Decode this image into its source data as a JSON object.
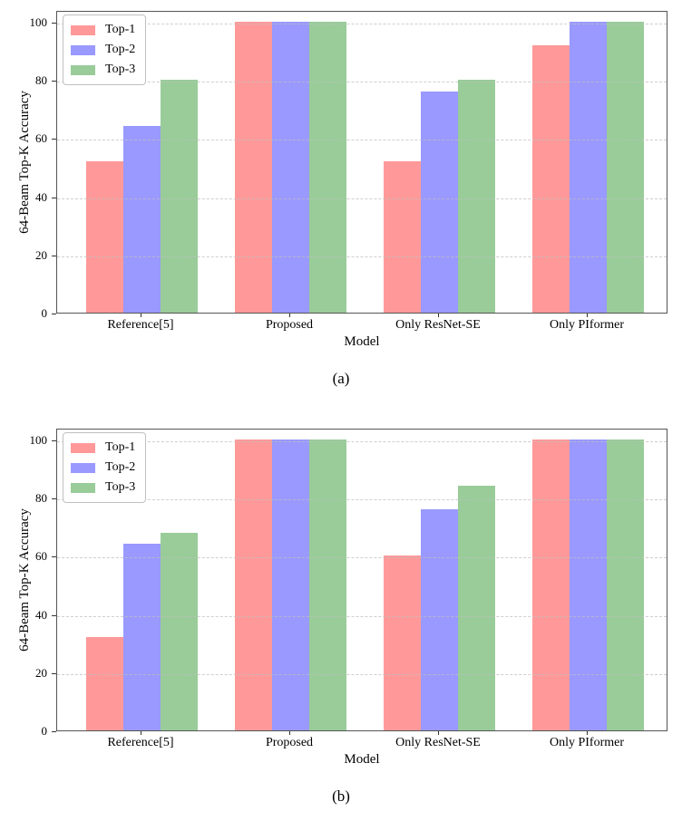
{
  "figure": {
    "background": "#ffffff",
    "spine_color": "#555555",
    "grid_color": "#bfbfbf",
    "text_color": "#000000"
  },
  "chart_data": [
    {
      "type": "bar",
      "caption": "(a)",
      "title": "",
      "xlabel": "Model",
      "ylabel": "64-Beam Top-K Accuracy",
      "categories": [
        "Reference[5]",
        "Proposed",
        "Only ResNet-SE",
        "Only PIformer"
      ],
      "series": [
        {
          "name": "Top-1",
          "color": "#ff9999",
          "values": [
            52,
            100,
            52,
            92
          ]
        },
        {
          "name": "Top-2",
          "color": "#9999ff",
          "values": [
            64,
            100,
            76,
            100
          ]
        },
        {
          "name": "Top-3",
          "color": "#99cc99",
          "values": [
            80,
            100,
            80,
            100
          ]
        }
      ],
      "yticks": [
        0,
        20,
        40,
        60,
        80,
        100
      ],
      "ylim": [
        0,
        104
      ],
      "grid": "horizontal-dashed",
      "legend_position": "upper-left"
    },
    {
      "type": "bar",
      "caption": "(b)",
      "title": "",
      "xlabel": "Model",
      "ylabel": "64-Beam Top-K Accuracy",
      "categories": [
        "Reference[5]",
        "Proposed",
        "Only ResNet-SE",
        "Only PIformer"
      ],
      "series": [
        {
          "name": "Top-1",
          "color": "#ff9999",
          "values": [
            32,
            100,
            60,
            100
          ]
        },
        {
          "name": "Top-2",
          "color": "#9999ff",
          "values": [
            64,
            100,
            76,
            100
          ]
        },
        {
          "name": "Top-3",
          "color": "#99cc99",
          "values": [
            68,
            100,
            84,
            100
          ]
        }
      ],
      "yticks": [
        0,
        20,
        40,
        60,
        80,
        100
      ],
      "ylim": [
        0,
        104
      ],
      "grid": "horizontal-dashed",
      "legend_position": "upper-left"
    }
  ]
}
